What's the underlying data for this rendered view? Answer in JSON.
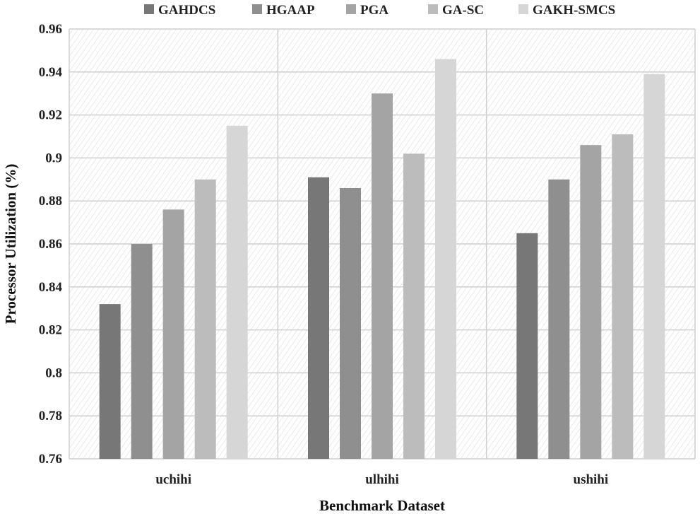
{
  "chart_data": {
    "type": "bar",
    "categories": [
      "uchihi",
      "ulhihi",
      "ushihi"
    ],
    "series": [
      {
        "name": "GAHDCS",
        "color": "#777777",
        "values": [
          0.832,
          0.891,
          0.865
        ]
      },
      {
        "name": "HGAAP",
        "color": "#8f8f8f",
        "values": [
          0.86,
          0.886,
          0.89
        ]
      },
      {
        "name": "PGA",
        "color": "#a4a4a4",
        "values": [
          0.876,
          0.93,
          0.906
        ]
      },
      {
        "name": "GA-SC",
        "color": "#bcbcbc",
        "values": [
          0.89,
          0.902,
          0.911
        ]
      },
      {
        "name": "GAKH-SMCS",
        "color": "#d6d6d6",
        "values": [
          0.915,
          0.946,
          0.939
        ]
      }
    ],
    "xlabel": "Benchmark Dataset",
    "ylabel": "Processor Utilization (%)",
    "ylim": [
      0.76,
      0.96
    ],
    "yticks": [
      0.76,
      0.78,
      0.8,
      0.82,
      0.84,
      0.86,
      0.88,
      0.9,
      0.92,
      0.94,
      0.96
    ],
    "ytick_labels": [
      "0.76",
      "0.78",
      "0.8",
      "0.82",
      "0.84",
      "0.86",
      "0.88",
      "0.9",
      "0.92",
      "0.94",
      "0.96"
    ],
    "grid": true,
    "legend_position": "top"
  }
}
